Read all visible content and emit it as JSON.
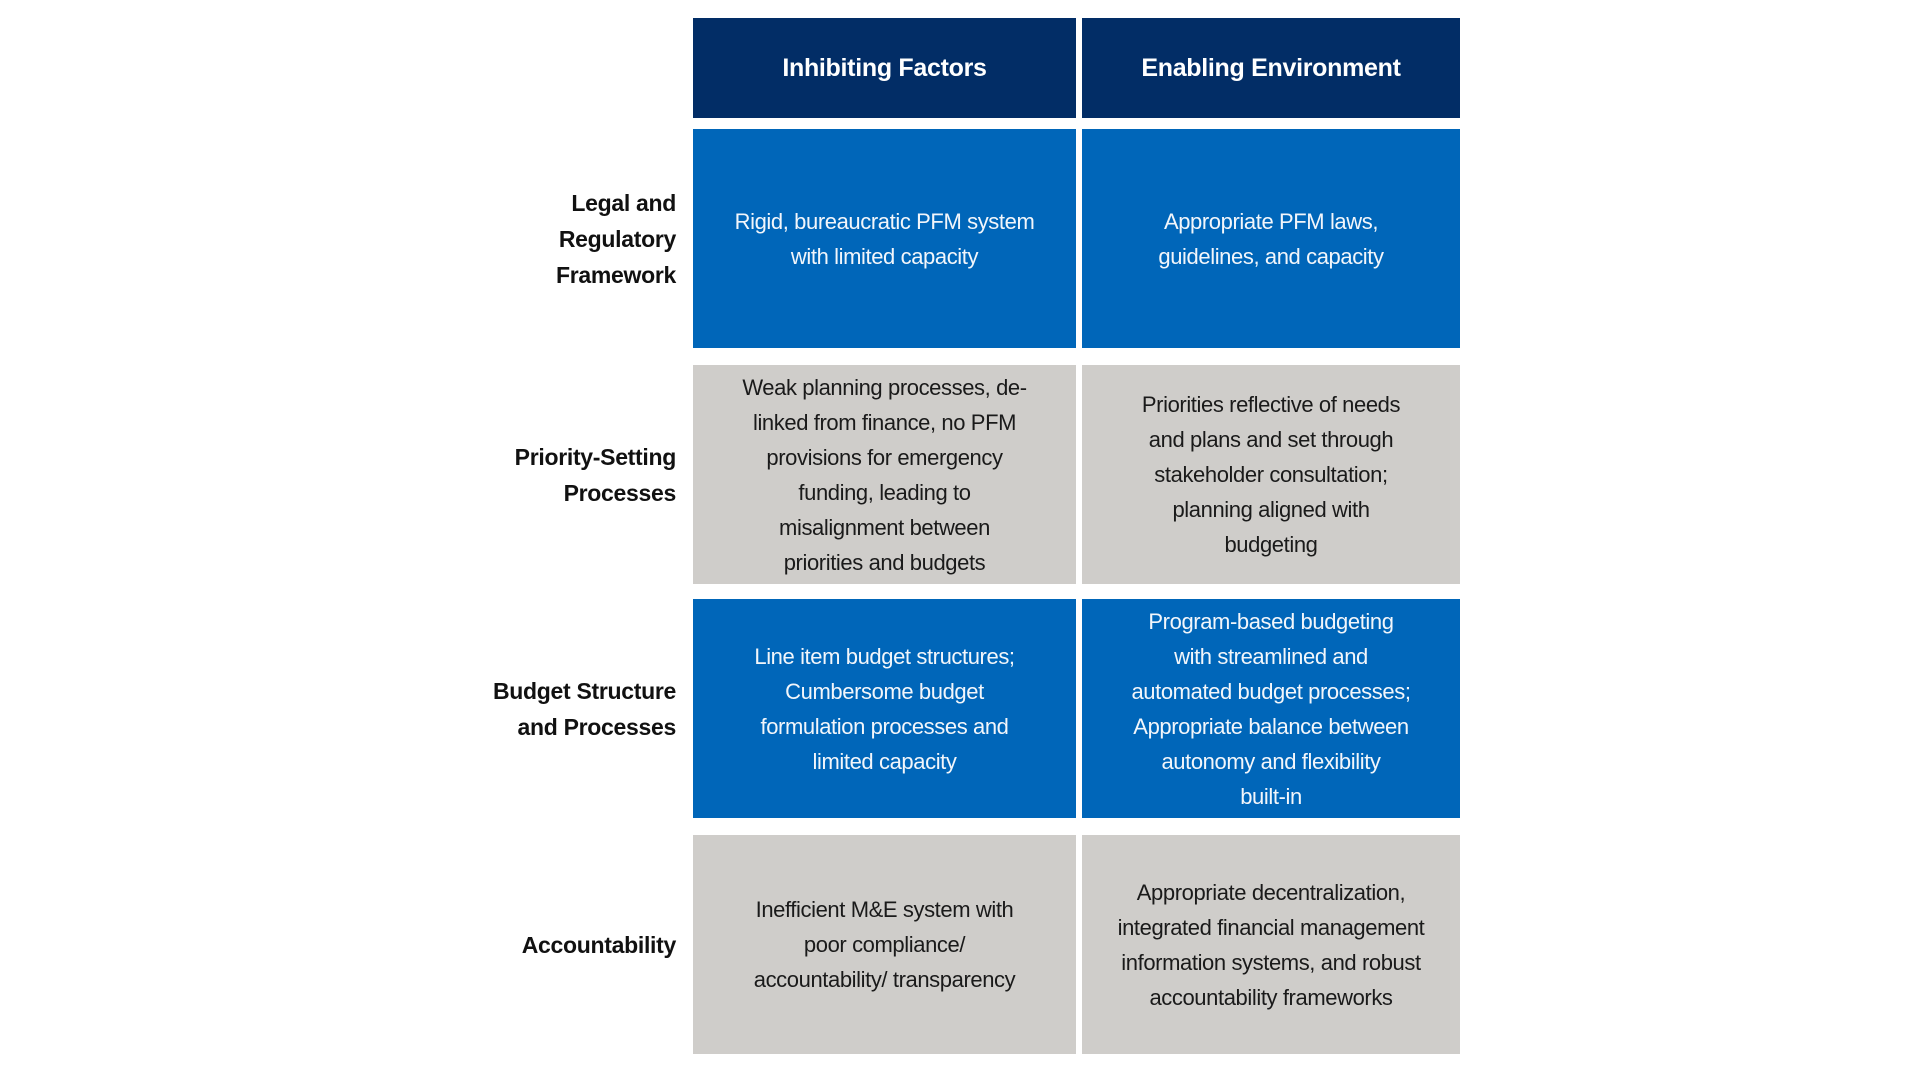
{
  "columns": [
    "Inhibiting Factors",
    "Enabling Environment"
  ],
  "colors": {
    "header": "#022d66",
    "blue_row": "#0066b9",
    "gray_row": "#cfcdca"
  },
  "rows": [
    {
      "label": [
        "Legal and",
        "Regulatory",
        "Framework"
      ],
      "inhibiting": [
        "Rigid, bureaucratic PFM system",
        "with limited capacity"
      ],
      "enabling": [
        "Appropriate PFM laws,",
        "guidelines, and capacity"
      ]
    },
    {
      "label": [
        "Priority-Setting",
        "Processes"
      ],
      "inhibiting": [
        "Weak planning processes, de-",
        "linked from finance, no PFM",
        "provisions for emergency",
        "funding, leading to",
        "misalignment between",
        "priorities and budgets"
      ],
      "enabling": [
        "Priorities reflective of needs",
        "and plans and set through",
        "stakeholder consultation;",
        "planning aligned with",
        "budgeting"
      ]
    },
    {
      "label": [
        "Budget Structure",
        "and Processes"
      ],
      "inhibiting": [
        "Line item budget structures;",
        "Cumbersome budget",
        "formulation processes and",
        "limited capacity"
      ],
      "enabling": [
        "Program-based budgeting",
        "with streamlined and",
        "automated budget processes;",
        "Appropriate balance between",
        "autonomy and flexibility",
        "built-in"
      ]
    },
    {
      "label": [
        "Accountability"
      ],
      "inhibiting": [
        "Inefficient M&E system with",
        "poor compliance/",
        "accountability/ transparency"
      ],
      "enabling": [
        "Appropriate decentralization,",
        "integrated financial management",
        "information systems, and robust",
        "accountability frameworks"
      ]
    }
  ]
}
